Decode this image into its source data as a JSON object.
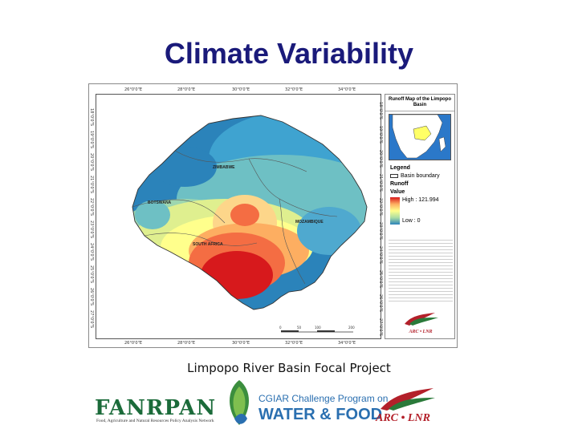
{
  "slide": {
    "title": "Climate Variability",
    "subtitle": "Limpopo River Basin Focal Project"
  },
  "map": {
    "panel_title": "Runoff Map of the Limpopo Basin",
    "top_longitudes": [
      "26°0'0\"E",
      "28°0'0\"E",
      "30°0'0\"E",
      "32°0'0\"E",
      "34°0'0\"E"
    ],
    "bottom_longitudes": [
      "26°0'0\"E",
      "28°0'0\"E",
      "30°0'0\"E",
      "32°0'0\"E",
      "34°0'0\"E"
    ],
    "left_latitudes": [
      "18°0'0\"S",
      "19°0'0\"S",
      "20°0'0\"S",
      "21°0'0\"S",
      "22°0'0\"S",
      "23°0'0\"S",
      "24°0'0\"S",
      "25°0'0\"S",
      "26°0'0\"S",
      "27°0'0\"S"
    ],
    "right_latitudes": [
      "18°0'0\"S",
      "19°0'0\"S",
      "20°0'0\"S",
      "21°0'0\"S",
      "22°0'0\"S",
      "23°0'0\"S",
      "24°0'0\"S",
      "25°0'0\"S",
      "26°0'0\"S",
      "27°0'0\"S"
    ],
    "country_labels": [
      "ZIMBABWE",
      "BOTSWANA",
      "MOZAMBIQUE",
      "SOUTH AFRICA"
    ],
    "legend": {
      "title": "Legend",
      "basin_boundary": "Basin boundary",
      "layer": "Runoff",
      "value_label": "Value",
      "high": "High : 121.994",
      "low": "Low : 0"
    },
    "scale_ticks": [
      "0",
      "50",
      "100",
      "200"
    ],
    "colors": {
      "high": "#d7191c",
      "mid_high": "#fdae61",
      "mid": "#ffff8c",
      "mid_low": "#abdda4",
      "low": "#2b83ba",
      "panel_sea": "#2b78c9"
    }
  },
  "logos": {
    "fanrpan": "FANRPAN",
    "fanrpan_sub": "Food, Agriculture and Natural Resources Policy Analysis Network",
    "cgiar_line1": "CGIAR Challenge Program on",
    "cgiar_line2": "WATER & FOOD",
    "arc": "ARC • LNR",
    "arc_small": "ARC • LNR"
  }
}
